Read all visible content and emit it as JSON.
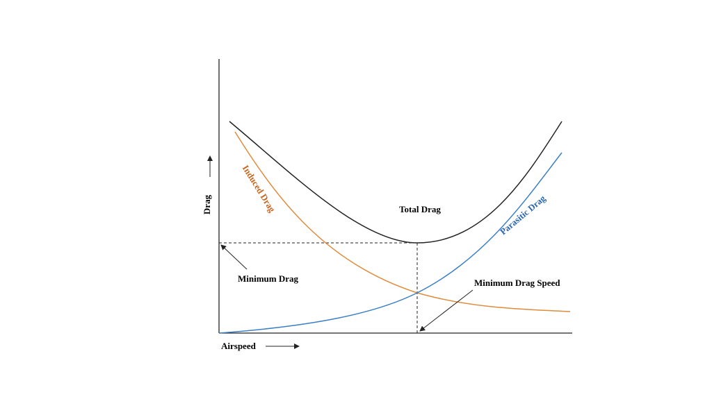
{
  "axes": {
    "y_label": "Drag",
    "x_label": "Airspeed"
  },
  "curves": {
    "total": "Total Drag",
    "induced": "Induced Drag",
    "parasitic": "Parasitic Drag"
  },
  "annotations": {
    "minimum_drag": "Minimum Drag",
    "minimum_drag_speed": "Minimum Drag Speed"
  }
}
